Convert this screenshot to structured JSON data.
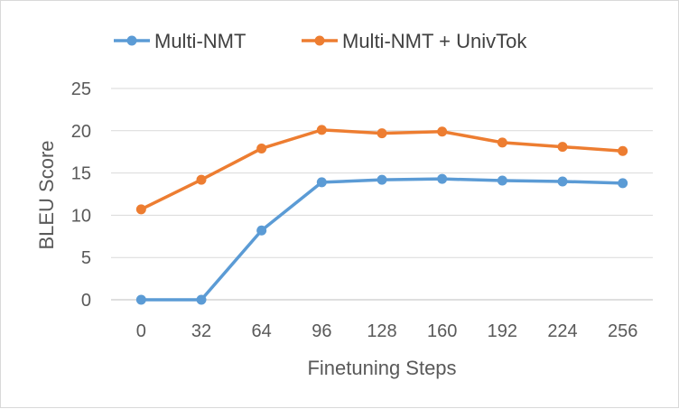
{
  "chart_data": {
    "type": "line",
    "x": [
      0,
      32,
      64,
      96,
      128,
      160,
      192,
      224,
      256
    ],
    "xlabel": "Finetuning Steps",
    "ylabel": "BLEU Score",
    "ylim": [
      0,
      25
    ],
    "yticks": [
      0,
      5,
      10,
      15,
      20,
      25
    ],
    "grid": "horizontal",
    "legend_position": "top",
    "series": [
      {
        "name": "Multi-NMT",
        "color": "#5b9bd5",
        "values": [
          0,
          0,
          8.2,
          13.9,
          14.2,
          14.3,
          14.1,
          14.0,
          13.8
        ]
      },
      {
        "name": "Multi-NMT + UnivTok",
        "color": "#ed7d31",
        "values": [
          10.7,
          14.2,
          17.9,
          20.1,
          19.7,
          19.9,
          18.6,
          18.1,
          17.6
        ]
      }
    ]
  }
}
